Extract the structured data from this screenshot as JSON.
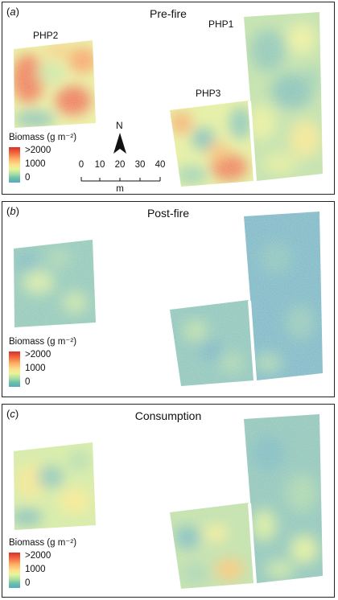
{
  "panels": [
    {
      "letter": "a",
      "title": "Pre-fire",
      "plot_labels": {
        "php1": "PHP1",
        "php2": "PHP2",
        "php3": "PHP3"
      },
      "legend": {
        "title": "Biomass (g m⁻²)",
        "high": ">2000",
        "mid": "1000",
        "low": "0"
      }
    },
    {
      "letter": "b",
      "title": "Post-fire",
      "legend": {
        "title": "Biomass (g m⁻²)",
        "high": ">2000",
        "mid": "1000",
        "low": "0"
      }
    },
    {
      "letter": "c",
      "title": "Consumption",
      "legend": {
        "title": "Biomass (g m⁻²)",
        "high": ">2000",
        "mid": "1000",
        "low": "0"
      }
    }
  ],
  "north_arrow": {
    "label": "N"
  },
  "scale_bar": {
    "ticks": [
      "0",
      "10",
      "20",
      "30",
      "40"
    ],
    "unit": "m"
  },
  "colors": {
    "low": "#5aa8c8",
    "mid": "#fee08b",
    "high": "#d73027",
    "frame": "#222222"
  }
}
